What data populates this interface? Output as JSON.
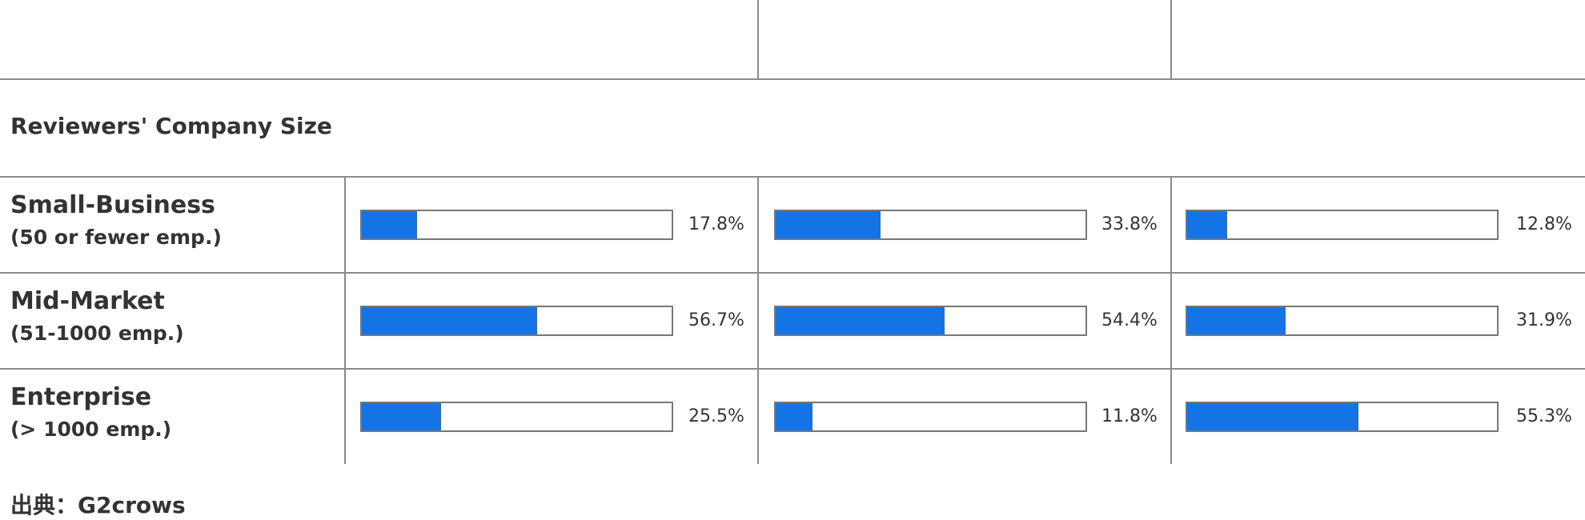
{
  "section_title": "Reviewers' Company Size",
  "source": "出典：G2crows",
  "rows": [
    {
      "label": "Small-Business",
      "sublabel": "(50 or fewer emp.)",
      "values": [
        17.8,
        33.8,
        12.8
      ],
      "value_labels": [
        "17.8%",
        "33.8%",
        "12.8%"
      ]
    },
    {
      "label": "Mid-Market",
      "sublabel": "(51-1000 emp.)",
      "values": [
        56.7,
        54.4,
        31.9
      ],
      "value_labels": [
        "56.7%",
        "54.4%",
        "31.9%"
      ]
    },
    {
      "label": "Enterprise",
      "sublabel": "(> 1000 emp.)",
      "values": [
        25.5,
        11.8,
        55.3
      ],
      "value_labels": [
        "25.5%",
        "11.8%",
        "55.3%"
      ]
    }
  ],
  "colors": {
    "bar_fill": "#1473e6",
    "bar_border": "#777777",
    "grid_line": "#8a8a8a",
    "text": "#333333"
  }
}
